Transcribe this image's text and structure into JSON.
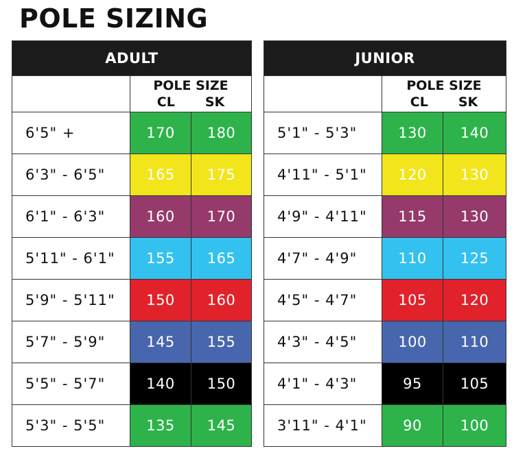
{
  "title": "POLE SIZING",
  "subheader": {
    "pole_size": "POLE SIZE",
    "cl": "CL",
    "sk": "SK"
  },
  "colors": {
    "green": "#2db34a",
    "yellow": "#f2e51c",
    "magenta": "#963a6b",
    "cyan": "#33c1ef",
    "red": "#e1222b",
    "blue": "#4866ad",
    "black": "#000000"
  },
  "adult": {
    "label": "ADULT",
    "rows": [
      {
        "height": "6'5\" +",
        "cl": "170",
        "sk": "180",
        "color": "#2db34a"
      },
      {
        "height": "6'3\" - 6'5\"",
        "cl": "165",
        "sk": "175",
        "color": "#f2e51c"
      },
      {
        "height": "6'1\" - 6'3\"",
        "cl": "160",
        "sk": "170",
        "color": "#963a6b"
      },
      {
        "height": "5'11\" - 6'1\"",
        "cl": "155",
        "sk": "165",
        "color": "#33c1ef"
      },
      {
        "height": "5'9\" - 5'11\"",
        "cl": "150",
        "sk": "160",
        "color": "#e1222b"
      },
      {
        "height": "5'7\" - 5'9\"",
        "cl": "145",
        "sk": "155",
        "color": "#4866ad"
      },
      {
        "height": "5'5\" - 5'7\"",
        "cl": "140",
        "sk": "150",
        "color": "#000000"
      },
      {
        "height": "5'3\" - 5'5\"",
        "cl": "135",
        "sk": "145",
        "color": "#2db34a"
      }
    ]
  },
  "junior": {
    "label": "JUNIOR",
    "rows": [
      {
        "height": "5'1\" - 5'3\"",
        "cl": "130",
        "sk": "140",
        "color": "#2db34a"
      },
      {
        "height": "4'11\" - 5'1\"",
        "cl": "120",
        "sk": "130",
        "color": "#f2e51c"
      },
      {
        "height": "4'9\" - 4'11\"",
        "cl": "115",
        "sk": "130",
        "color": "#963a6b"
      },
      {
        "height": "4'7\" - 4'9\"",
        "cl": "110",
        "sk": "125",
        "color": "#33c1ef"
      },
      {
        "height": "4'5\" - 4'7\"",
        "cl": "105",
        "sk": "120",
        "color": "#e1222b"
      },
      {
        "height": "4'3\" - 4'5\"",
        "cl": "100",
        "sk": "110",
        "color": "#4866ad"
      },
      {
        "height": "4'1\" - 4'3\"",
        "cl": "95",
        "sk": "105",
        "color": "#000000"
      },
      {
        "height": "3'11\" - 4'1\"",
        "cl": "90",
        "sk": "100",
        "color": "#2db34a"
      }
    ]
  }
}
